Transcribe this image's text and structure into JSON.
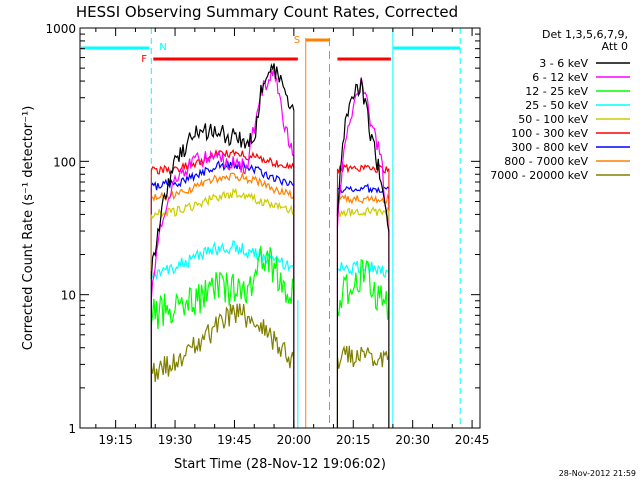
{
  "chart_data": {
    "type": "line",
    "title": "HESSI Observing Summary Count Rates, Corrected",
    "xlabel": "Start Time (28-Nov-12 19:06:02)",
    "ylabel": "Corrected Count Rate (s⁻¹ detector⁻¹)",
    "y_scale": "log",
    "xlim": [
      "19:06",
      "20:47"
    ],
    "ylim": [
      1,
      1000
    ],
    "x_ticks": [
      "19:15",
      "19:30",
      "19:45",
      "20:00",
      "20:15",
      "20:30",
      "20:45"
    ],
    "y_ticks": [
      "1",
      "10",
      "100",
      "1000"
    ],
    "grid": false,
    "legend_position": "right, outside plot",
    "legend_title": [
      "Det 1,3,5,6,7,9,",
      "Att 0"
    ],
    "legend": [
      {
        "label": "3 - 6 keV",
        "color": "#000000"
      },
      {
        "label": "6 - 12 keV",
        "color": "#ff00ff"
      },
      {
        "label": "12 - 25 keV",
        "color": "#00ff00"
      },
      {
        "label": "25 - 50 keV",
        "color": "#00ffff"
      },
      {
        "label": "50 - 100 keV",
        "color": "#cccc00"
      },
      {
        "label": "100 - 300 keV",
        "color": "#ff0000"
      },
      {
        "label": "300 - 800 keV",
        "color": "#0000ff"
      },
      {
        "label": "800 - 7000 keV",
        "color": "#ff8000"
      },
      {
        "label": "7000 - 20000 keV",
        "color": "#808000"
      }
    ],
    "flags": [
      {
        "label": "N",
        "color": "#00ffff"
      },
      {
        "label": "F",
        "color": "#ff0000"
      },
      {
        "label": "S",
        "color": "#ff8000"
      }
    ],
    "series": [
      {
        "name": "3 - 6 keV",
        "color": "#000000",
        "x": [
          "19:24",
          "19:27",
          "19:30",
          "19:35",
          "19:40",
          "19:45",
          "19:50",
          "19:52",
          "19:55",
          "19:58",
          "20:00",
          "20:11",
          "20:13",
          "20:15",
          "20:17",
          "20:19",
          "20:22",
          "20:24"
        ],
        "y": [
          15,
          50,
          100,
          160,
          170,
          150,
          140,
          380,
          480,
          330,
          240,
          45,
          200,
          300,
          400,
          180,
          75,
          30
        ]
      },
      {
        "name": "6 - 12 keV",
        "color": "#ff00ff",
        "x": [
          "19:24",
          "19:26",
          "19:30",
          "19:35",
          "19:40",
          "19:45",
          "19:48",
          "19:52",
          "19:55",
          "19:58",
          "20:00",
          "20:11",
          "20:13",
          "20:15",
          "20:17",
          "20:19",
          "20:22",
          "20:24"
        ],
        "y": [
          10,
          30,
          75,
          100,
          110,
          95,
          90,
          350,
          470,
          170,
          110,
          35,
          150,
          230,
          450,
          220,
          110,
          28
        ]
      },
      {
        "name": "12 - 25 keV",
        "color": "#00ff00",
        "x": [
          "19:24",
          "19:30",
          "19:35",
          "19:40",
          "19:45",
          "19:50",
          "19:52",
          "19:55",
          "19:58",
          "20:00",
          "20:11",
          "20:15",
          "20:18",
          "20:20",
          "20:24"
        ],
        "y": [
          7,
          8,
          9,
          11,
          11,
          12,
          20,
          16,
          11,
          10,
          9,
          12,
          15,
          11,
          8
        ]
      },
      {
        "name": "25 - 50 keV",
        "color": "#00ffff",
        "x": [
          "19:24",
          "19:30",
          "19:35",
          "19:40",
          "19:45",
          "19:50",
          "19:55",
          "20:00",
          "20:11",
          "20:15",
          "20:20",
          "20:24"
        ],
        "y": [
          14,
          16,
          19,
          22,
          23,
          20,
          18,
          16,
          16,
          16,
          16,
          15
        ]
      },
      {
        "name": "50 - 100 keV",
        "color": "#cccc00",
        "x": [
          "19:24",
          "19:30",
          "19:35",
          "19:40",
          "19:45",
          "19:50",
          "19:55",
          "20:00",
          "20:11",
          "20:15",
          "20:20",
          "20:24"
        ],
        "y": [
          40,
          42,
          47,
          53,
          58,
          52,
          46,
          42,
          41,
          42,
          42,
          42
        ]
      },
      {
        "name": "100 - 300 keV",
        "color": "#ff0000",
        "x": [
          "19:24",
          "19:30",
          "19:35",
          "19:40",
          "19:45",
          "19:50",
          "19:55",
          "20:00",
          "20:11",
          "20:15",
          "20:20",
          "20:24"
        ],
        "y": [
          85,
          87,
          95,
          112,
          115,
          108,
          98,
          90,
          88,
          88,
          88,
          88
        ]
      },
      {
        "name": "300 - 800 keV",
        "color": "#0000ff",
        "x": [
          "19:24",
          "19:30",
          "19:35",
          "19:40",
          "19:45",
          "19:50",
          "19:55",
          "20:00",
          "20:11",
          "20:15",
          "20:20",
          "20:24"
        ],
        "y": [
          65,
          68,
          78,
          92,
          96,
          88,
          75,
          66,
          63,
          63,
          63,
          63
        ]
      },
      {
        "name": "800 - 7000 keV",
        "color": "#ff8000",
        "x": [
          "19:24",
          "19:30",
          "19:35",
          "19:40",
          "19:45",
          "19:50",
          "19:55",
          "20:00",
          "20:11",
          "20:15",
          "20:20",
          "20:24"
        ],
        "y": [
          53,
          55,
          64,
          74,
          78,
          72,
          62,
          55,
          52,
          52,
          52,
          52
        ]
      },
      {
        "name": "7000 - 20000 keV",
        "color": "#808000",
        "x": [
          "19:24",
          "19:30",
          "19:35",
          "19:40",
          "19:45",
          "19:50",
          "19:55",
          "20:00",
          "20:11",
          "20:15",
          "20:20",
          "20:24"
        ],
        "y": [
          2.6,
          3.0,
          4.0,
          5.5,
          7.5,
          6.5,
          4.5,
          3.2,
          3.3,
          3.5,
          3.5,
          3.5
        ]
      }
    ]
  },
  "footer": {
    "timestamp": "28-Nov-2012 21:59"
  }
}
